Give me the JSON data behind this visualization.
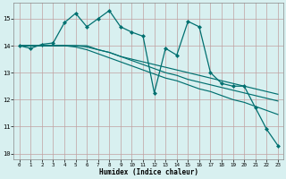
{
  "xlabel": "Humidex (Indice chaleur)",
  "bg_color": "#d8f0f0",
  "grid_color_h": "#c8a0a0",
  "grid_color_v": "#c8a0a0",
  "line_color": "#007070",
  "xlim": [
    -0.5,
    23.5
  ],
  "ylim": [
    9.8,
    15.6
  ],
  "yticks": [
    10,
    11,
    12,
    13,
    14,
    15
  ],
  "xticks": [
    0,
    1,
    2,
    3,
    4,
    5,
    6,
    7,
    8,
    9,
    10,
    11,
    12,
    13,
    14,
    15,
    16,
    17,
    18,
    19,
    20,
    21,
    22,
    23
  ],
  "series": [
    {
      "y": [
        14.0,
        13.9,
        14.05,
        14.1,
        14.85,
        15.2,
        14.7,
        15.0,
        15.3,
        14.7,
        14.5,
        14.35,
        12.25,
        13.9,
        13.65,
        14.9,
        14.7,
        13.0,
        12.6,
        12.5,
        12.5,
        11.7,
        10.9,
        10.3
      ],
      "marker": true
    },
    {
      "y": [
        14.0,
        14.0,
        14.0,
        14.0,
        14.0,
        14.0,
        14.0,
        13.85,
        13.75,
        13.6,
        13.45,
        13.3,
        13.15,
        13.0,
        12.9,
        12.75,
        12.65,
        12.55,
        12.45,
        12.35,
        12.25,
        12.15,
        12.05,
        11.95
      ],
      "marker": false
    },
    {
      "y": [
        14.0,
        14.0,
        14.0,
        14.0,
        14.0,
        13.95,
        13.85,
        13.7,
        13.55,
        13.4,
        13.25,
        13.1,
        12.95,
        12.8,
        12.7,
        12.55,
        12.4,
        12.3,
        12.15,
        12.0,
        11.9,
        11.75,
        11.6,
        11.45
      ],
      "marker": false
    },
    {
      "y": [
        14.0,
        14.0,
        14.0,
        14.0,
        14.0,
        14.0,
        13.95,
        13.85,
        13.75,
        13.6,
        13.5,
        13.4,
        13.3,
        13.2,
        13.1,
        13.0,
        12.9,
        12.8,
        12.7,
        12.6,
        12.5,
        12.4,
        12.3,
        12.2
      ],
      "marker": false
    }
  ]
}
